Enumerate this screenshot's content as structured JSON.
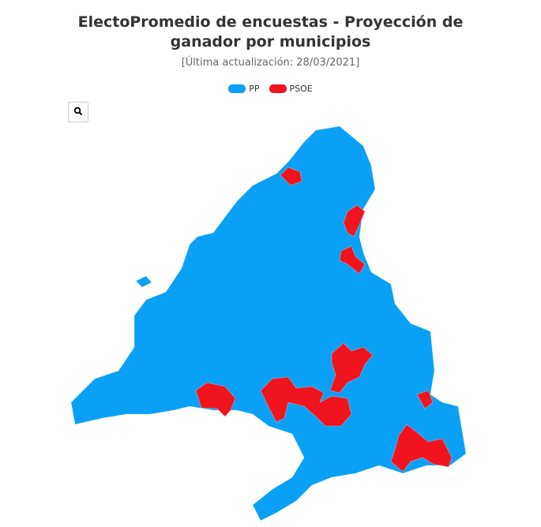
{
  "header": {
    "title": "ElectoPromedio de encuestas - Proyección de ganador por municipios",
    "subtitle": "[Última actualización: 28/03/2021]"
  },
  "legend": [
    {
      "label": "PP",
      "color": "#0aa0f5"
    },
    {
      "label": "PSOE",
      "color": "#f0141e"
    }
  ]
}
